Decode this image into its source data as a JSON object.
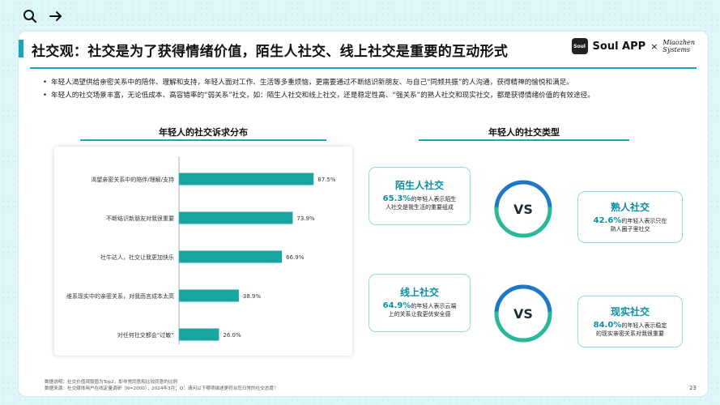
{
  "header": {
    "title": "社交观：社交是为了获得情绪价值，陌生人社交、线上社交是重要的互动形式"
  },
  "logo": {
    "box_text": "Soul",
    "app_name": "Soul APP",
    "times": "×",
    "partner_line1": "Miaozhen",
    "partner_line2": "Systems"
  },
  "bullets": [
    "年轻人渴望供给亲密关系中的陪伴、理解和支持，年轻人面对工作、生活等多重烦恼，更需要通过不断结识新朋友、与自己“同频共振”的人沟通，获得精神的愉悦和满足。",
    "年轻人的社交场景丰富，无论低成本、高容错率的“弱关系”社交，如：陌生人社交和线上社交，还是稳定性高、“强关系”的熟人社交和现实社交，都是获得情绪价值的有效途径。"
  ],
  "left_section": {
    "title": "年轻人的社交诉求分布"
  },
  "right_section": {
    "title": "年轻人的社交类型"
  },
  "chart_data": {
    "type": "bar",
    "orientation": "horizontal",
    "categories": [
      "渴望亲密关系中的陪伴/理解/支持",
      "不断结识新朋友对我很重要",
      "社牛达人，社交让我更加快乐",
      "维系现实中的亲密关系，对我而言成本太高",
      "对任何社交都会“过敏”"
    ],
    "values": [
      87.5,
      73.9,
      66.9,
      38.9,
      26.0
    ],
    "value_labels": [
      "87.5%",
      "73.9%",
      "66.9%",
      "38.9%",
      "26.0%"
    ],
    "xlim": [
      0,
      100
    ],
    "bar_color": "#19a6a0",
    "grid": false
  },
  "types": {
    "stranger": {
      "title": "陌生人社交",
      "pct": "65.3%",
      "text1": "的年轻人表示陌生",
      "text2": "人社交是我生活的重要组成"
    },
    "acquaint": {
      "title": "熟人社交",
      "pct": "42.6%",
      "text1": "的年轻人表示只在",
      "text2": "熟人圈子里社交"
    },
    "online": {
      "title": "线上社交",
      "pct": "64.9%",
      "text1": "的年轻人表示云端",
      "text2": "上的关系让我更优安全感"
    },
    "offline": {
      "title": "现实社交",
      "pct": "84.0%",
      "text1": "的年轻人表示稳定",
      "text2": "的现实亲密关系对我很重要"
    },
    "vs_label": "VS"
  },
  "footnote": {
    "line1": "数据说明：社交价值观取值为Top2，即非常同意和比较同意的比例",
    "line2": "数据来源：社交媒体用户在线定量调研（N=2000），2024年3月；Q：请问以下哪项描述更符合您日常的社交态度？"
  },
  "page_number": "23",
  "colors": {
    "accent": "#1aa5b8",
    "bar": "#19a6a0",
    "ring_blue": "#1f77c8",
    "ring_green": "#2bb89a"
  }
}
